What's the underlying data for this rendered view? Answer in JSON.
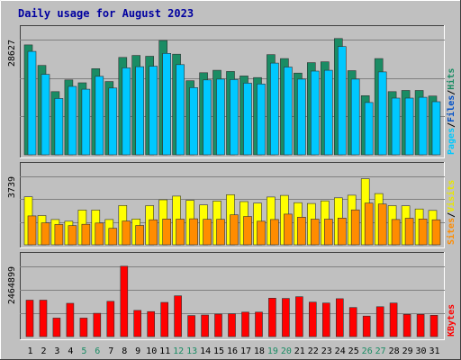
{
  "chart_data": {
    "title": "Daily usage for August 2023",
    "type": "bar",
    "categories": [
      "1",
      "2",
      "3",
      "4",
      "5",
      "6",
      "7",
      "8",
      "9",
      "10",
      "11",
      "12",
      "13",
      "14",
      "15",
      "16",
      "17",
      "18",
      "19",
      "20",
      "21",
      "22",
      "23",
      "24",
      "25",
      "26",
      "27",
      "28",
      "29",
      "30",
      "31"
    ],
    "weekend_days": [
      "5",
      "6",
      "12",
      "13",
      "19",
      "20",
      "26",
      "27"
    ],
    "colors": {
      "hits": "#1a8c64",
      "files": "#00c8ff",
      "pages": "#0a2850",
      "visits": "#ffff00",
      "sites": "#ff8c00",
      "kbytes": "#ff0000",
      "title": "#0000a0",
      "weekend_label": "#1a8c64",
      "panel_bg": "#c0c0c0"
    },
    "panels": [
      {
        "id": "hits-files-pages",
        "ylabel_max": "28627",
        "ymax": 28627,
        "label_parts": [
          {
            "text": "Pages",
            "color": "#00c8ff"
          },
          {
            "text": "/",
            "color": "#000000"
          },
          {
            "text": "Files",
            "color": "#0050c8"
          },
          {
            "text": "/",
            "color": "#000000"
          },
          {
            "text": "Hits",
            "color": "#1a8c64"
          }
        ],
        "series": [
          {
            "name": "Hits",
            "color": "#1a8c64",
            "values": [
              27300,
              22200,
              15700,
              18600,
              17900,
              21400,
              18200,
              24200,
              24700,
              24500,
              28400,
              25000,
              18400,
              20400,
              21000,
              20700,
              19600,
              19200,
              24900,
              23900,
              20300,
              22900,
              23100,
              28900,
              20900,
              14700,
              23900,
              15700,
              16000,
              16000,
              14600
            ]
          },
          {
            "name": "Files",
            "color": "#00c8ff",
            "values": [
              25700,
              20000,
              14000,
              17000,
              16300,
              19500,
              16600,
              21600,
              21900,
              22000,
              25200,
              22400,
              16700,
              18600,
              18800,
              18700,
              17800,
              17600,
              22800,
              21800,
              18800,
              20800,
              21000,
              26900,
              18800,
              13000,
              20600,
              14100,
              14100,
              14300,
              13200
            ]
          },
          {
            "name": "Pages",
            "color": "#0a2850",
            "values": [
              0,
              0,
              0,
              0,
              0,
              0,
              0,
              0,
              0,
              0,
              0,
              0,
              0,
              0,
              0,
              0,
              0,
              0,
              0,
              0,
              0,
              0,
              0,
              0,
              0,
              0,
              0,
              0,
              0,
              0,
              0
            ]
          }
        ]
      },
      {
        "id": "visits-sites",
        "ylabel_max": "3739",
        "ymax": 3739,
        "label_parts": [
          {
            "text": "Sites",
            "color": "#ff8c00"
          },
          {
            "text": "/",
            "color": "#000000"
          },
          {
            "text": "Visits",
            "color": "#e8e800"
          }
        ],
        "series": [
          {
            "name": "Visits",
            "color": "#ffff00",
            "values": [
              2620,
              1600,
              1380,
              1290,
              1900,
              1900,
              1380,
              2150,
              1410,
              2140,
              2460,
              2660,
              2430,
              2180,
              2390,
              2740,
              2360,
              2280,
              2610,
              2700,
              2300,
              2260,
              2400,
              2570,
              2710,
              3610,
              2800,
              2140,
              2130,
              1960,
              1880
            ]
          },
          {
            "name": "Sites",
            "color": "#ff8c00",
            "values": [
              1580,
              1200,
              1110,
              1050,
              1120,
              1190,
              900,
              1300,
              1060,
              1370,
              1410,
              1400,
              1420,
              1390,
              1390,
              1640,
              1550,
              1290,
              1380,
              1680,
              1510,
              1400,
              1400,
              1460,
              1910,
              2280,
              2230,
              1380,
              1450,
              1410,
              1370
            ]
          }
        ]
      },
      {
        "id": "kbytes",
        "ylabel_max": "2464899",
        "ymax": 2464899,
        "label_parts": [
          {
            "text": "KBytes",
            "color": "#ff0000"
          }
        ],
        "series": [
          {
            "name": "KBytes",
            "color": "#ff0000",
            "values": [
              1280000,
              1280000,
              650000,
              1170000,
              650000,
              820000,
              1240000,
              2470000,
              920000,
              880000,
              1200000,
              1430000,
              740000,
              760000,
              790000,
              800000,
              860000,
              860000,
              1350000,
              1340000,
              1400000,
              1210000,
              1180000,
              1330000,
              1020000,
              720000,
              1050000,
              1180000,
              780000,
              780000,
              750000
            ]
          }
        ]
      }
    ]
  }
}
